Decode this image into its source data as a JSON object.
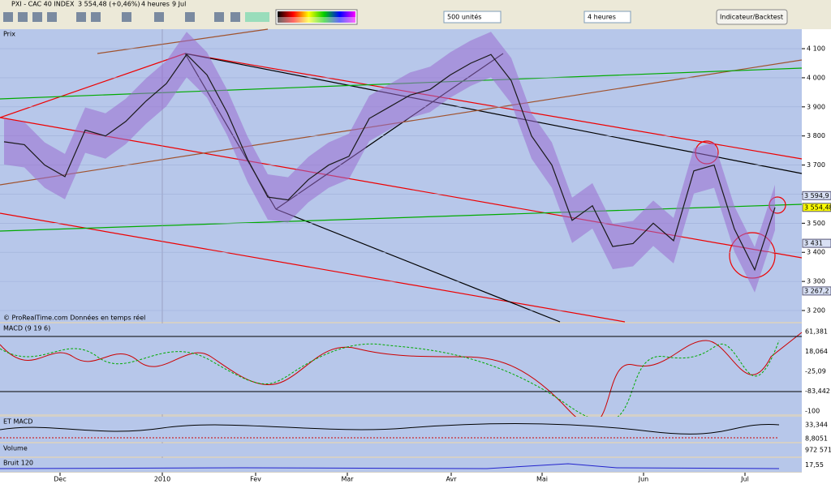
{
  "window": {
    "title": "PXI - CAC 40 INDEX",
    "last": "3 554,48 (+0,46%)",
    "timeframe": "4 heures",
    "date": "9 Jul"
  },
  "toolbar": {
    "units": "500 unités",
    "period": "4 heures",
    "button": "Indicateur/Backtest"
  },
  "chart_data": {
    "type": "line",
    "title": "Prix",
    "footer": "© ProRealTime.com  Données en temps réel",
    "series": [
      {
        "name": "CAC 40",
        "color": "#1a1a1a",
        "values": [
          3780,
          3770,
          3700,
          3660,
          3820,
          3800,
          3850,
          3920,
          3980,
          4080,
          4010,
          3880,
          3720,
          3590,
          3580,
          3650,
          3700,
          3730,
          3860,
          3900,
          3940,
          3960,
          4010,
          4050,
          4080,
          3990,
          3800,
          3700,
          3510,
          3560,
          3420,
          3430,
          3500,
          3440,
          3680,
          3700,
          3480,
          3340,
          3554.48
        ]
      }
    ],
    "xlim": [
      -0.2,
      39.32
    ],
    "xticks": [
      {
        "value": 2.76,
        "label": "Dec"
      },
      {
        "value": 7.8,
        "label": "2010"
      },
      {
        "value": 12.4,
        "label": "Fev"
      },
      {
        "value": 16.92,
        "label": "Mar"
      },
      {
        "value": 22.04,
        "label": "Avr"
      },
      {
        "value": 26.52,
        "label": "Mai"
      },
      {
        "value": 31.52,
        "label": "Jun"
      },
      {
        "value": 36.52,
        "label": "Jul"
      }
    ],
    "ylim": [
      3161,
      4167
    ],
    "yticks": [
      {
        "value": 3200,
        "label": "3 200"
      },
      {
        "value": 3300,
        "label": "3 300"
      },
      {
        "value": 3400,
        "label": "3 400"
      },
      {
        "value": 3500,
        "label": "3 500"
      },
      {
        "value": 3600,
        "label": "3 600"
      },
      {
        "value": 3700,
        "label": "3 700"
      },
      {
        "value": 3800,
        "label": "3 800"
      },
      {
        "value": 3900,
        "label": "3 900"
      },
      {
        "value": 4000,
        "label": "4 000"
      },
      {
        "value": 4100,
        "label": "4 100"
      }
    ],
    "price_tags": [
      {
        "value": 3594.9,
        "label": "3 594,9"
      },
      {
        "value": 3554.48,
        "label": "3 554,48"
      },
      {
        "value": 3431,
        "label": "3 431"
      },
      {
        "value": 3267.2,
        "label": "3 267,2"
      }
    ],
    "grid": true
  },
  "panels": [
    {
      "title": "MACD (9 19 6)",
      "labels": [
        "61,381",
        "18,064",
        "-25,09",
        "-83,442",
        "-100"
      ]
    },
    {
      "title": "ET MACD",
      "labels": [
        "33,344",
        "8,8051"
      ]
    },
    {
      "title": "Volume",
      "labels": [
        "972 571"
      ]
    },
    {
      "title": "Bruit 120",
      "labels": [
        "17,55"
      ]
    }
  ]
}
